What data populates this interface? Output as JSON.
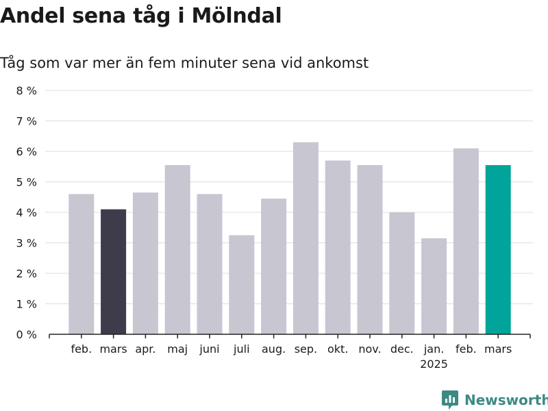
{
  "title": "Andel sena tåg i Mölndal",
  "subtitle": "Tåg som var mer än fem minuter sena vid ankomst",
  "brand": "Newsworthy",
  "colors": {
    "default": "#c8c6d1",
    "highlight_previous": "#3e3c4a",
    "highlight_latest": "#00a49a",
    "grid": "#dddddd",
    "axis": "#222222",
    "text": "#1a1a1a",
    "brand": "#3d8a83"
  },
  "chart_data": {
    "type": "bar",
    "title": "Andel sena tåg i Mölndal",
    "subtitle": "Tåg som var mer än fem minuter sena vid ankomst",
    "categories": [
      "feb.",
      "mars",
      "apr.",
      "maj",
      "juni",
      "juli",
      "aug.",
      "sep.",
      "okt.",
      "nov.",
      "dec.",
      "jan.",
      "feb.",
      "mars"
    ],
    "year_labels": [
      "",
      "",
      "",
      "",
      "",
      "",
      "",
      "",
      "",
      "",
      "",
      "2025",
      "",
      ""
    ],
    "values": [
      4.6,
      4.1,
      4.65,
      5.55,
      4.6,
      3.25,
      4.45,
      6.3,
      5.7,
      5.55,
      4.0,
      3.15,
      6.1,
      5.55
    ],
    "bar_colors": [
      "default",
      "highlight_previous",
      "default",
      "default",
      "default",
      "default",
      "default",
      "default",
      "default",
      "default",
      "default",
      "default",
      "default",
      "highlight_latest"
    ],
    "y_ticks": [
      0,
      1,
      2,
      3,
      4,
      5,
      6,
      7,
      8
    ],
    "y_tick_labels": [
      "0 %",
      "1 %",
      "2 %",
      "3 %",
      "4 %",
      "5 %",
      "6 %",
      "7 %",
      "8 %"
    ],
    "ylim": [
      0,
      8
    ],
    "xlabel": "",
    "ylabel": "",
    "grid": true,
    "legend": "none"
  }
}
